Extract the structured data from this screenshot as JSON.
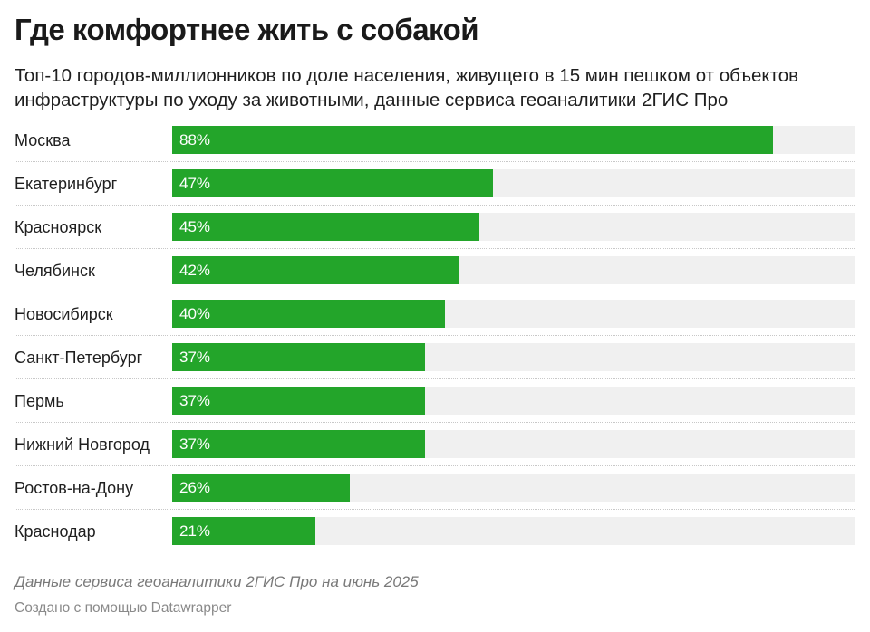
{
  "header": {
    "title": "Где комфортнее жить с собакой",
    "subtitle": "Топ-10 городов-миллионников по доле населения, живущего в 15 мин пешком от объектов инфраструктуры по уходу за животными, данные сервиса геоаналитики 2ГИС Про"
  },
  "chart_data": {
    "type": "bar",
    "orientation": "horizontal",
    "categories": [
      "Москва",
      "Екатеринбург",
      "Красноярск",
      "Челябинск",
      "Новосибирск",
      "Санкт-Петербург",
      "Пермь",
      "Нижний Новгород",
      "Ростов-на-Дону",
      "Краснодар"
    ],
    "values": [
      88,
      47,
      45,
      42,
      40,
      37,
      37,
      37,
      26,
      21
    ],
    "value_labels": [
      "88%",
      "47%",
      "45%",
      "42%",
      "40%",
      "37%",
      "37%",
      "37%",
      "26%",
      "21%"
    ],
    "xlim": [
      0,
      100
    ],
    "bar_color": "#23a52a",
    "track_color": "#f0f0f0"
  },
  "footer": {
    "note": "Данные сервиса геоаналитики 2ГИС Про на июнь 2025",
    "credit": "Создано с помощью Datawrapper"
  }
}
